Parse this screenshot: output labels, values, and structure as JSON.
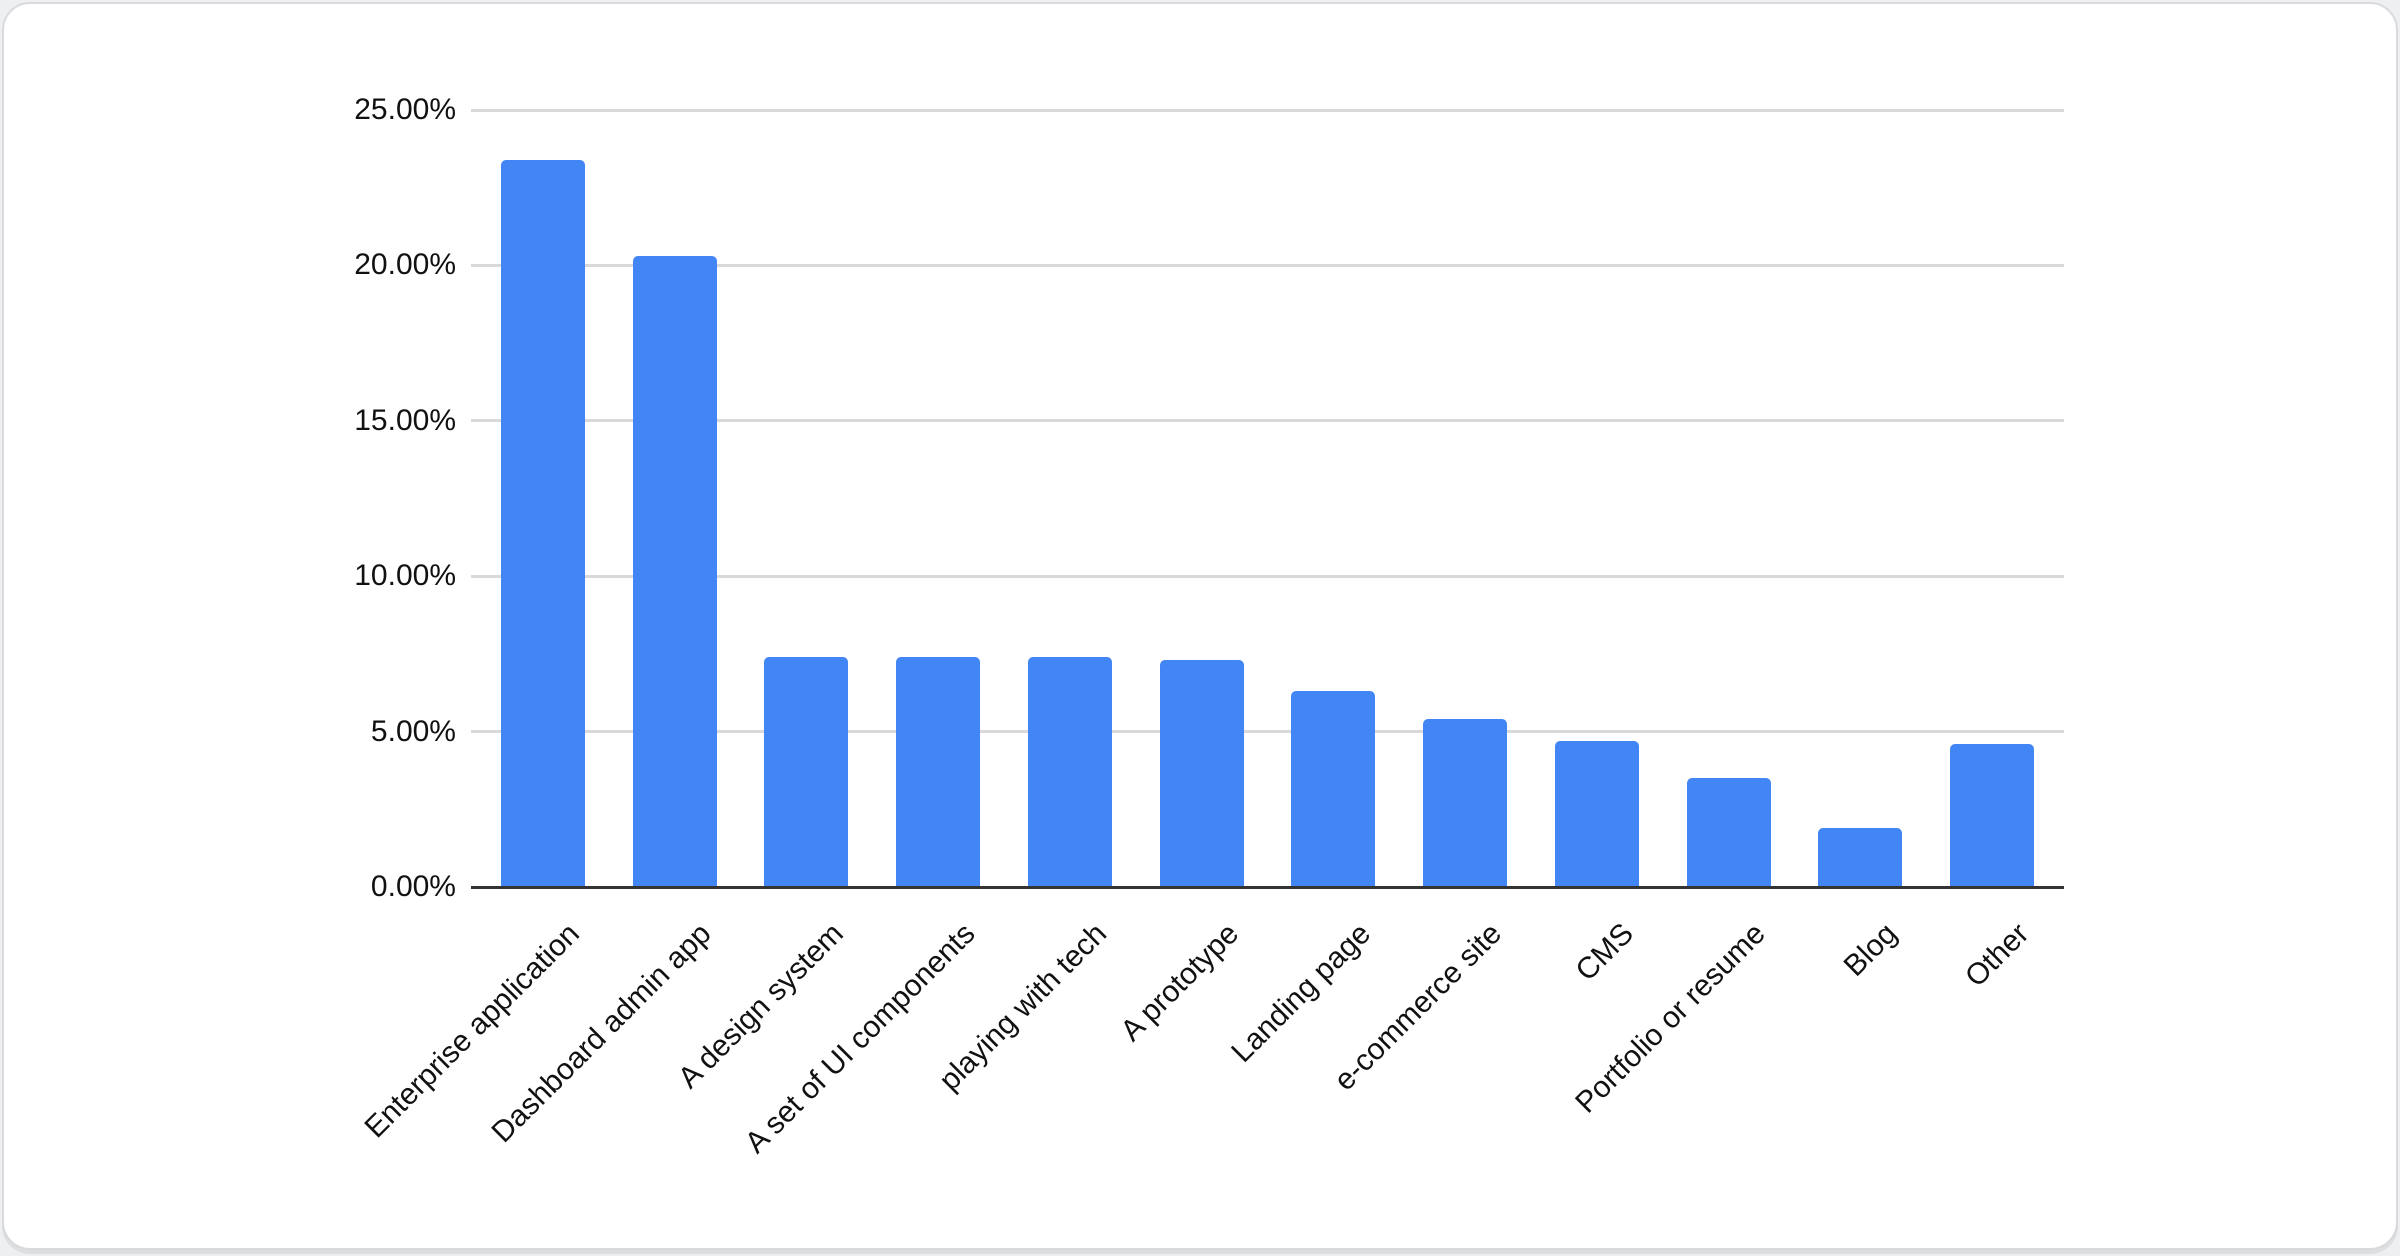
{
  "page": {
    "background": "#edeff1"
  },
  "card": {
    "background": "#ffffff",
    "border_color": "#d8dade"
  },
  "chart_data": {
    "type": "bar",
    "title": "",
    "xlabel": "",
    "ylabel": "",
    "legend": "none",
    "grid": true,
    "ylim": [
      0,
      25
    ],
    "categories": [
      "Enterprise application",
      "Dashboard admin app",
      "A design system",
      "A set of UI components",
      "playing with tech",
      "A prototype",
      "Landing page",
      "e-commerce site",
      "CMS",
      "Portfolio or resume",
      "Blog",
      "Other"
    ],
    "values": [
      23.4,
      20.3,
      7.4,
      7.4,
      7.4,
      7.3,
      6.3,
      5.4,
      4.7,
      3.5,
      1.9,
      4.6
    ],
    "y_ticks": [
      {
        "value": 0,
        "label": "0.00%"
      },
      {
        "value": 5,
        "label": "5.00%"
      },
      {
        "value": 10,
        "label": "10.00%"
      },
      {
        "value": 15,
        "label": "15.00%"
      },
      {
        "value": 20,
        "label": "20.00%"
      },
      {
        "value": 25,
        "label": "25.00%"
      }
    ],
    "colors": {
      "bar": "#4285f4",
      "gridline": "#d9d9d9",
      "baseline": "#333333",
      "label": "#111111"
    }
  }
}
